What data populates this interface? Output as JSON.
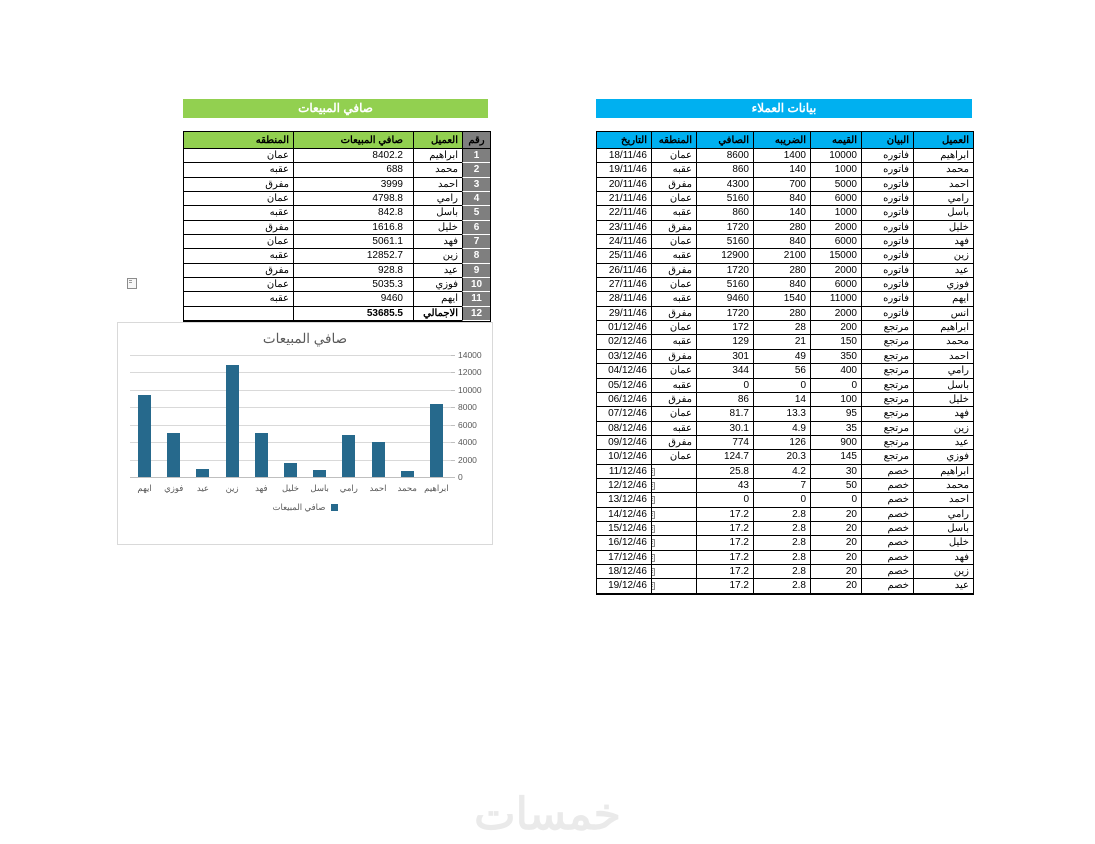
{
  "page": {
    "watermark": "خمسات"
  },
  "colors": {
    "green": "#92D050",
    "blue": "#00B0F0",
    "gray": "#7F7F7F",
    "bar": "#26698C",
    "grid": "#D9D9D9",
    "axis_text": "#595959"
  },
  "sales_summary": {
    "title": "صافي المبيعات",
    "headers": {
      "num": "رقم",
      "customer": "العميل",
      "net": "صافي المبيعات",
      "region": "المنطقه"
    },
    "rows": [
      {
        "num": "1",
        "customer": "ابراهيم",
        "net": "8402.2",
        "region": "عمان",
        "total": false
      },
      {
        "num": "2",
        "customer": "محمد",
        "net": "688",
        "region": "عقبه",
        "total": false
      },
      {
        "num": "3",
        "customer": "احمد",
        "net": "3999",
        "region": "مفرق",
        "total": false
      },
      {
        "num": "4",
        "customer": "رامي",
        "net": "4798.8",
        "region": "عمان",
        "total": false
      },
      {
        "num": "5",
        "customer": "باسل",
        "net": "842.8",
        "region": "عقبه",
        "total": false
      },
      {
        "num": "6",
        "customer": "خليل",
        "net": "1616.8",
        "region": "مفرق",
        "total": false
      },
      {
        "num": "7",
        "customer": "فهد",
        "net": "5061.1",
        "region": "عمان",
        "total": false
      },
      {
        "num": "8",
        "customer": "زين",
        "net": "12852.7",
        "region": "عقبه",
        "total": false
      },
      {
        "num": "9",
        "customer": "عيد",
        "net": "928.8",
        "region": "مفرق",
        "total": false
      },
      {
        "num": "10",
        "customer": "فوزي",
        "net": "5035.3",
        "region": "عمان",
        "total": false
      },
      {
        "num": "11",
        "customer": "ايهم",
        "net": "9460",
        "region": "عقبه",
        "total": false
      },
      {
        "num": "12",
        "customer": "الاجمالي",
        "net": "53685.5",
        "region": "",
        "total": true
      }
    ]
  },
  "customer_data": {
    "title": "بيانات العملاء",
    "headers": {
      "customer": "العميل",
      "statement": "البيان",
      "value": "القيمه",
      "tax": "الضريبه",
      "net": "الصافي",
      "region": "المنطقه",
      "date": "التاريخ"
    },
    "rows": [
      {
        "customer": "ابراهيم",
        "statement": "فاتوره",
        "value": "10000",
        "tax": "1400",
        "net": "8600",
        "region": "عمان",
        "date": "18/11/46",
        "flag": false
      },
      {
        "customer": "محمد",
        "statement": "فاتوره",
        "value": "1000",
        "tax": "140",
        "net": "860",
        "region": "عقبه",
        "date": "19/11/46",
        "flag": false
      },
      {
        "customer": "احمد",
        "statement": "فاتوره",
        "value": "5000",
        "tax": "700",
        "net": "4300",
        "region": "مفرق",
        "date": "20/11/46",
        "flag": false
      },
      {
        "customer": "رامي",
        "statement": "فاتوره",
        "value": "6000",
        "tax": "840",
        "net": "5160",
        "region": "عمان",
        "date": "21/11/46",
        "flag": false
      },
      {
        "customer": "باسل",
        "statement": "فاتوره",
        "value": "1000",
        "tax": "140",
        "net": "860",
        "region": "عقبه",
        "date": "22/11/46",
        "flag": false
      },
      {
        "customer": "خليل",
        "statement": "فاتوره",
        "value": "2000",
        "tax": "280",
        "net": "1720",
        "region": "مفرق",
        "date": "23/11/46",
        "flag": false
      },
      {
        "customer": "فهد",
        "statement": "فاتوره",
        "value": "6000",
        "tax": "840",
        "net": "5160",
        "region": "عمان",
        "date": "24/11/46",
        "flag": false
      },
      {
        "customer": "زين",
        "statement": "فاتوره",
        "value": "15000",
        "tax": "2100",
        "net": "12900",
        "region": "عقبه",
        "date": "25/11/46",
        "flag": false
      },
      {
        "customer": "عيد",
        "statement": "فاتوره",
        "value": "2000",
        "tax": "280",
        "net": "1720",
        "region": "مفرق",
        "date": "26/11/46",
        "flag": false
      },
      {
        "customer": "فوزي",
        "statement": "فاتوره",
        "value": "6000",
        "tax": "840",
        "net": "5160",
        "region": "عمان",
        "date": "27/11/46",
        "flag": false
      },
      {
        "customer": "ايهم",
        "statement": "فاتوره",
        "value": "11000",
        "tax": "1540",
        "net": "9460",
        "region": "عقبه",
        "date": "28/11/46",
        "flag": false
      },
      {
        "customer": "انس",
        "statement": "فاتوره",
        "value": "2000",
        "tax": "280",
        "net": "1720",
        "region": "مفرق",
        "date": "29/11/46",
        "flag": false
      },
      {
        "customer": "ابراهيم",
        "statement": "مرتجع",
        "value": "200",
        "tax": "28",
        "net": "172",
        "region": "عمان",
        "date": "01/12/46",
        "flag": false
      },
      {
        "customer": "محمد",
        "statement": "مرتجع",
        "value": "150",
        "tax": "21",
        "net": "129",
        "region": "عقبه",
        "date": "02/12/46",
        "flag": false
      },
      {
        "customer": "احمد",
        "statement": "مرتجع",
        "value": "350",
        "tax": "49",
        "net": "301",
        "region": "مفرق",
        "date": "03/12/46",
        "flag": false
      },
      {
        "customer": "رامي",
        "statement": "مرتجع",
        "value": "400",
        "tax": "56",
        "net": "344",
        "region": "عمان",
        "date": "04/12/46",
        "flag": false
      },
      {
        "customer": "باسل",
        "statement": "مرتجع",
        "value": "0",
        "tax": "0",
        "net": "0",
        "region": "عقبه",
        "date": "05/12/46",
        "flag": false
      },
      {
        "customer": "خليل",
        "statement": "مرتجع",
        "value": "100",
        "tax": "14",
        "net": "86",
        "region": "مفرق",
        "date": "06/12/46",
        "flag": false
      },
      {
        "customer": "فهد",
        "statement": "مرتجع",
        "value": "95",
        "tax": "13.3",
        "net": "81.7",
        "region": "عمان",
        "date": "07/12/46",
        "flag": false
      },
      {
        "customer": "زين",
        "statement": "مرتجع",
        "value": "35",
        "tax": "4.9",
        "net": "30.1",
        "region": "عقبه",
        "date": "08/12/46",
        "flag": false
      },
      {
        "customer": "عيد",
        "statement": "مرتجع",
        "value": "900",
        "tax": "126",
        "net": "774",
        "region": "مفرق",
        "date": "09/12/46",
        "flag": false
      },
      {
        "customer": "فوزي",
        "statement": "مرتجع",
        "value": "145",
        "tax": "20.3",
        "net": "124.7",
        "region": "عمان",
        "date": "10/12/46",
        "flag": false
      },
      {
        "customer": "ابراهيم",
        "statement": "خصم",
        "value": "30",
        "tax": "4.2",
        "net": "25.8",
        "region": "",
        "date": "11/12/46",
        "flag": true
      },
      {
        "customer": "محمد",
        "statement": "خصم",
        "value": "50",
        "tax": "7",
        "net": "43",
        "region": "",
        "date": "12/12/46",
        "flag": true
      },
      {
        "customer": "احمد",
        "statement": "خصم",
        "value": "0",
        "tax": "0",
        "net": "0",
        "region": "",
        "date": "13/12/46",
        "flag": true
      },
      {
        "customer": "رامي",
        "statement": "خصم",
        "value": "20",
        "tax": "2.8",
        "net": "17.2",
        "region": "",
        "date": "14/12/46",
        "flag": true
      },
      {
        "customer": "باسل",
        "statement": "خصم",
        "value": "20",
        "tax": "2.8",
        "net": "17.2",
        "region": "",
        "date": "15/12/46",
        "flag": true
      },
      {
        "customer": "خليل",
        "statement": "خصم",
        "value": "20",
        "tax": "2.8",
        "net": "17.2",
        "region": "",
        "date": "16/12/46",
        "flag": true
      },
      {
        "customer": "فهد",
        "statement": "خصم",
        "value": "20",
        "tax": "2.8",
        "net": "17.2",
        "region": "",
        "date": "17/12/46",
        "flag": true
      },
      {
        "customer": "زين",
        "statement": "خصم",
        "value": "20",
        "tax": "2.8",
        "net": "17.2",
        "region": "",
        "date": "18/12/46",
        "flag": true
      },
      {
        "customer": "عيد",
        "statement": "خصم",
        "value": "20",
        "tax": "2.8",
        "net": "17.2",
        "region": "",
        "date": "19/12/46",
        "flag": true
      }
    ]
  },
  "chart_data": {
    "type": "bar",
    "title": "صافي المبيعات",
    "categories": [
      "ابراهيم",
      "محمد",
      "احمد",
      "رامي",
      "باسل",
      "خليل",
      "فهد",
      "زين",
      "عيد",
      "فوزي",
      "ايهم"
    ],
    "values": [
      8402.2,
      688,
      3999,
      4798.8,
      842.8,
      1616.8,
      5061.1,
      12852.7,
      928.8,
      5035.3,
      9460
    ],
    "xlabel": "",
    "ylabel": "",
    "ylim": [
      0,
      14000
    ],
    "ytick_step": 2000,
    "grid": true,
    "rtl": true,
    "legend": "صافي المبيعات",
    "legend_position": "bottom",
    "bar_color": "#26698C"
  }
}
